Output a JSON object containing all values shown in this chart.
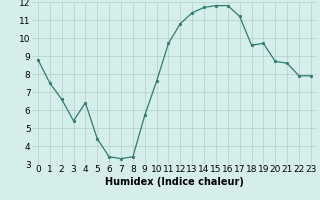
{
  "x": [
    0,
    1,
    2,
    3,
    4,
    5,
    6,
    7,
    8,
    9,
    10,
    11,
    12,
    13,
    14,
    15,
    16,
    17,
    18,
    19,
    20,
    21,
    22,
    23
  ],
  "y": [
    8.8,
    7.5,
    6.6,
    5.4,
    6.4,
    4.4,
    3.4,
    3.3,
    3.4,
    5.7,
    7.6,
    9.7,
    10.8,
    11.4,
    11.7,
    11.8,
    11.8,
    11.2,
    9.6,
    9.7,
    8.7,
    8.6,
    7.9,
    7.9
  ],
  "xlabel": "Humidex (Indice chaleur)",
  "ylim": [
    3,
    12
  ],
  "xlim": [
    -0.5,
    23.5
  ],
  "yticks": [
    3,
    4,
    5,
    6,
    7,
    8,
    9,
    10,
    11,
    12
  ],
  "xticks": [
    0,
    1,
    2,
    3,
    4,
    5,
    6,
    7,
    8,
    9,
    10,
    11,
    12,
    13,
    14,
    15,
    16,
    17,
    18,
    19,
    20,
    21,
    22,
    23
  ],
  "line_color": "#2e7d6e",
  "marker": "o",
  "marker_size": 1.8,
  "bg_color": "#d6eeeb",
  "grid_color": "#b0cfc9",
  "xlabel_fontsize": 7,
  "tick_fontsize": 6.5
}
